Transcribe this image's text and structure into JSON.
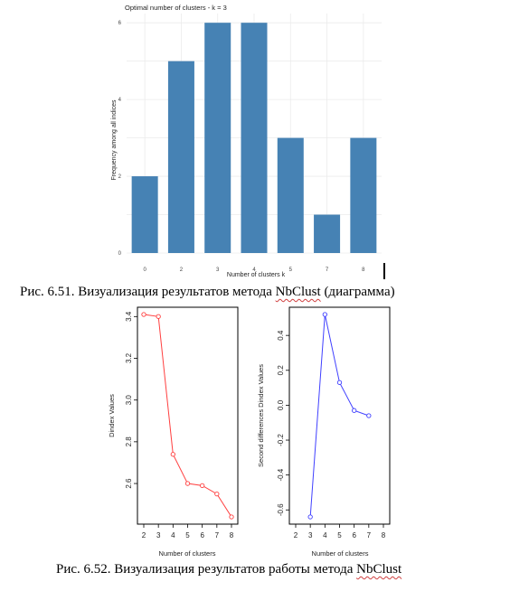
{
  "chart_data": [
    {
      "type": "bar",
      "title": "Optimal number of clusters - k = 3",
      "xlabel": "Number of clusters k",
      "ylabel": "Frequency among all indices",
      "categories": [
        "0",
        "2",
        "3",
        "4",
        "5",
        "7",
        "8"
      ],
      "values": [
        2,
        5,
        6,
        6,
        3,
        1,
        3
      ],
      "ylim": [
        0,
        6
      ],
      "yticks": [
        0,
        2,
        4,
        6
      ],
      "grid": true,
      "color": "#4682b4"
    },
    {
      "type": "line",
      "xlabel": "Number of clusters",
      "ylabel": "Dindex Values",
      "x": [
        2,
        3,
        4,
        5,
        6,
        7,
        8
      ],
      "y": [
        3.41,
        3.4,
        2.74,
        2.6,
        2.59,
        2.55,
        2.44
      ],
      "xticks": [
        "2",
        "3",
        "4",
        "5",
        "6",
        "7",
        "8"
      ],
      "yticks": [
        "2.6",
        "2.8",
        "3.0",
        "3.2",
        "3.4"
      ],
      "color": "#ff4040"
    },
    {
      "type": "line",
      "xlabel": "Number of clusters",
      "ylabel": "Second differences Dindex Values",
      "x": [
        3,
        4,
        5,
        6,
        7
      ],
      "y": [
        -0.64,
        0.52,
        0.13,
        -0.03,
        -0.06
      ],
      "xticks": [
        "2",
        "3",
        "4",
        "5",
        "6",
        "7",
        "8"
      ],
      "yticks": [
        "-0.6",
        "-0.4",
        "-0.2",
        "0.0",
        "0.2",
        "0.4"
      ],
      "color": "#4040ff"
    }
  ],
  "captions": {
    "fig51_prefix": "Рис. 6.51. Визуализация результатов  метода ",
    "fig51_word": "NbClust",
    "fig51_suffix": " (диаграмма)",
    "fig52_prefix": "Рис. 6.52. Визуализация результатов работы метода ",
    "fig52_word": "NbClust"
  }
}
